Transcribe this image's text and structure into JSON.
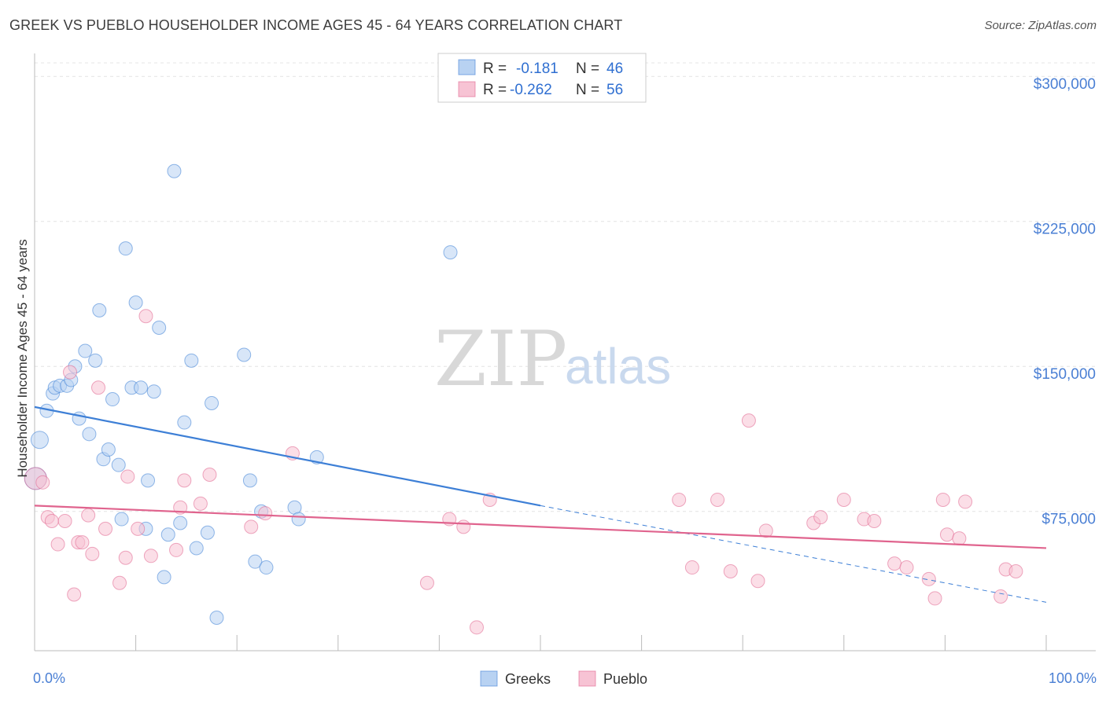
{
  "title": "GREEK VS PUEBLO HOUSEHOLDER INCOME AGES 45 - 64 YEARS CORRELATION CHART",
  "source": "Source: ZipAtlas.com",
  "watermark": {
    "zip": "ZIP",
    "atlas": "atlas"
  },
  "legend_top": {
    "rows": [
      {
        "r_label": "R =",
        "r_value": "-0.181",
        "n_label": "N =",
        "n_value": "46",
        "color": "#9ec0ea"
      },
      {
        "r_label": "R =",
        "r_value": "-0.262",
        "n_label": "N =",
        "n_value": "56",
        "color": "#f4b8cb"
      }
    ]
  },
  "chart_data": {
    "type": "scatter",
    "title": "GREEK VS PUEBLO HOUSEHOLDER INCOME AGES 45 - 64 YEARS CORRELATION CHART",
    "xlabel": "",
    "ylabel": "Householder Income Ages 45 - 64 years",
    "xlim": [
      0,
      100
    ],
    "ylim": [
      7000,
      307000
    ],
    "y_ticks": [
      75000,
      150000,
      225000,
      300000
    ],
    "y_tick_labels": [
      "$75,000",
      "$150,000",
      "$225,000",
      "$300,000"
    ],
    "x_tick_labels": [
      "0.0%",
      "100.0%"
    ],
    "series": [
      {
        "name": "Greeks",
        "color": "#3d7fd6",
        "fill": "#b8d2f2",
        "r": -0.181,
        "n": 46,
        "trend": {
          "x0": 0,
          "y0": 129000,
          "x1": 50,
          "y1": 78000,
          "dash_x1": 100,
          "dash_y1": 28000
        },
        "points": [
          [
            0.5,
            112000
          ],
          [
            1.2,
            127000
          ],
          [
            1.8,
            136000
          ],
          [
            2.0,
            139000
          ],
          [
            2.5,
            140000
          ],
          [
            3.2,
            140000
          ],
          [
            3.6,
            143000
          ],
          [
            4.0,
            150000
          ],
          [
            4.4,
            123000
          ],
          [
            5.0,
            158000
          ],
          [
            5.4,
            115000
          ],
          [
            6.0,
            153000
          ],
          [
            6.4,
            179000
          ],
          [
            6.8,
            102000
          ],
          [
            7.3,
            107000
          ],
          [
            7.7,
            133000
          ],
          [
            8.3,
            99000
          ],
          [
            8.6,
            71000
          ],
          [
            9.0,
            211000
          ],
          [
            9.6,
            139000
          ],
          [
            10.0,
            183000
          ],
          [
            10.5,
            139000
          ],
          [
            11.0,
            66000
          ],
          [
            11.2,
            91000
          ],
          [
            11.8,
            137000
          ],
          [
            12.3,
            170000
          ],
          [
            12.8,
            41000
          ],
          [
            13.2,
            63000
          ],
          [
            13.8,
            251000
          ],
          [
            14.4,
            69000
          ],
          [
            14.8,
            121000
          ],
          [
            15.5,
            153000
          ],
          [
            16.0,
            56000
          ],
          [
            17.1,
            64000
          ],
          [
            17.5,
            131000
          ],
          [
            18.0,
            20000
          ],
          [
            20.7,
            156000
          ],
          [
            21.3,
            91000
          ],
          [
            21.8,
            49000
          ],
          [
            22.4,
            75000
          ],
          [
            22.9,
            46000
          ],
          [
            25.7,
            77000
          ],
          [
            26.1,
            71000
          ],
          [
            27.9,
            103000
          ],
          [
            41.1,
            209000
          ],
          [
            0.1,
            92000
          ]
        ]
      },
      {
        "name": "Pueblo",
        "color": "#e0648e",
        "fill": "#f7c3d4",
        "r": -0.262,
        "n": 56,
        "trend": {
          "x0": 0,
          "y0": 78000,
          "x1": 100,
          "y1": 56000
        },
        "points": [
          [
            0.1,
            92000
          ],
          [
            0.8,
            90000
          ],
          [
            1.3,
            72000
          ],
          [
            1.7,
            70000
          ],
          [
            2.3,
            58000
          ],
          [
            3.0,
            70000
          ],
          [
            3.5,
            147000
          ],
          [
            3.9,
            32000
          ],
          [
            4.3,
            59000
          ],
          [
            4.7,
            59000
          ],
          [
            5.3,
            73000
          ],
          [
            5.7,
            53000
          ],
          [
            6.3,
            139000
          ],
          [
            7.0,
            66000
          ],
          [
            8.4,
            38000
          ],
          [
            9.0,
            51000
          ],
          [
            9.2,
            93000
          ],
          [
            10.2,
            66000
          ],
          [
            11.0,
            176000
          ],
          [
            11.5,
            52000
          ],
          [
            14.0,
            55000
          ],
          [
            14.4,
            77000
          ],
          [
            14.8,
            91000
          ],
          [
            16.4,
            79000
          ],
          [
            17.3,
            94000
          ],
          [
            21.4,
            67000
          ],
          [
            22.8,
            74000
          ],
          [
            25.5,
            105000
          ],
          [
            38.8,
            38000
          ],
          [
            41.0,
            71000
          ],
          [
            42.4,
            67000
          ],
          [
            43.7,
            15000
          ],
          [
            45.0,
            81000
          ],
          [
            63.7,
            81000
          ],
          [
            65.0,
            46000
          ],
          [
            67.5,
            81000
          ],
          [
            68.8,
            44000
          ],
          [
            70.6,
            122000
          ],
          [
            71.5,
            39000
          ],
          [
            72.3,
            65000
          ],
          [
            77.0,
            69000
          ],
          [
            77.7,
            72000
          ],
          [
            80.0,
            81000
          ],
          [
            82.0,
            71000
          ],
          [
            83.0,
            70000
          ],
          [
            85.0,
            48000
          ],
          [
            86.2,
            46000
          ],
          [
            88.4,
            40000
          ],
          [
            89.0,
            30000
          ],
          [
            89.8,
            81000
          ],
          [
            90.2,
            63000
          ],
          [
            91.4,
            61000
          ],
          [
            92.0,
            80000
          ],
          [
            95.5,
            31000
          ],
          [
            96.0,
            45000
          ],
          [
            97.0,
            44000
          ]
        ]
      }
    ],
    "legend": [
      "Greeks",
      "Pueblo"
    ],
    "grid": true
  }
}
